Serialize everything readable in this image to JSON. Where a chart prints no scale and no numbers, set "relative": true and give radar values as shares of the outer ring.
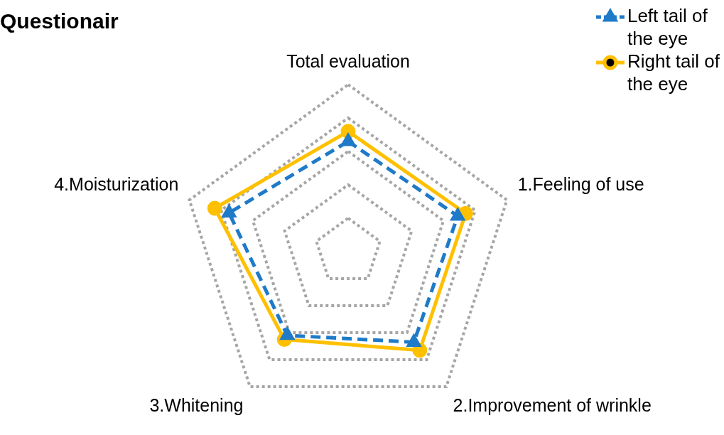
{
  "chart_data": {
    "type": "radar",
    "title": "Questionair",
    "relative": true,
    "grid": true,
    "legend": "top right",
    "line_style": "solid",
    "categories": [
      "Total evaluation",
      "1.Feeling of use",
      "2.Improvement of wrinkle",
      "3.Whitening",
      "4.Moisturization"
    ],
    "series": [
      {
        "name": "Left tail of the eye",
        "color": "#1f7ac8",
        "marker": "triangle",
        "line_style": "dashed",
        "values": [
          0.66,
          0.69,
          0.67,
          0.62,
          0.75
        ]
      },
      {
        "name": "Right tail of the eye",
        "color": "#ffc000",
        "marker": "circle",
        "values": [
          0.72,
          0.74,
          0.73,
          0.65,
          0.84
        ]
      }
    ]
  }
}
